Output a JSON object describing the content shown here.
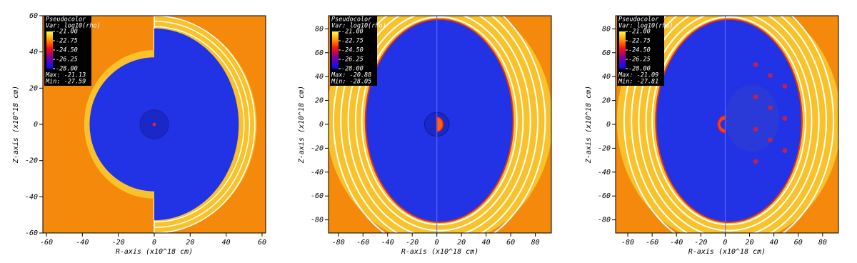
{
  "chart_data": [
    {
      "type": "image",
      "xlabel": "R-axis (x10^18 cm)",
      "ylabel": "Z-axis (x10^18 cm)",
      "xlim": [
        -62,
        62
      ],
      "xticks": [
        -60,
        -40,
        -20,
        0,
        20,
        40,
        60
      ],
      "ylim": [
        -60,
        60
      ],
      "yticks": [
        -60,
        -40,
        -20,
        0,
        20,
        40,
        60
      ],
      "legend_title": "Pseudocolor",
      "variable": "Var: log10(rho)",
      "clim": [
        -28,
        -21
      ],
      "cticks": [
        {
          "value": -21,
          "label": "-21.00"
        },
        {
          "value": -22.75,
          "label": "-22.75"
        },
        {
          "value": -24.5,
          "label": "-24.50"
        },
        {
          "value": -26.25,
          "label": "-26.25"
        },
        {
          "value": -28,
          "label": "-28.00"
        }
      ],
      "max_text": "Max: -21.13",
      "min_text": "Min: -27.59"
    },
    {
      "type": "image",
      "xlabel": "R-axis (x10^18 cm)",
      "ylabel": "Z-axis (x10^18 cm)",
      "xlim": [
        -88,
        93
      ],
      "xticks": [
        -80,
        -60,
        -40,
        -20,
        0,
        20,
        40,
        60,
        80
      ],
      "ylim": [
        -91,
        91
      ],
      "yticks": [
        -80,
        -60,
        -40,
        -20,
        0,
        20,
        40,
        60,
        80
      ],
      "legend_title": "Pseudocolor",
      "variable": "Var: log10(rho)",
      "clim": [
        -28,
        -21
      ],
      "cticks": [
        {
          "value": -21,
          "label": "-21.00"
        },
        {
          "value": -22.75,
          "label": "-22.75"
        },
        {
          "value": -24.5,
          "label": "-24.50"
        },
        {
          "value": -26.25,
          "label": "-26.25"
        },
        {
          "value": -28,
          "label": "-28.00"
        }
      ],
      "max_text": "Max: -20.88",
      "min_text": "Min: -28.05"
    },
    {
      "type": "image",
      "xlabel": "R-axis (x10^18 cm)",
      "ylabel": "Z-axis (x10^18 cm)",
      "xlim": [
        -90,
        93
      ],
      "xticks": [
        -80,
        -60,
        -40,
        -20,
        0,
        20,
        40,
        60,
        80
      ],
      "ylim": [
        -91,
        91
      ],
      "yticks": [
        -80,
        -60,
        -40,
        -20,
        0,
        20,
        40,
        60,
        80
      ],
      "legend_title": "Pseudocolor",
      "variable": "Var: log10(rho)",
      "clim": [
        -28,
        -21
      ],
      "cticks": [
        {
          "value": -21,
          "label": "-21.00"
        },
        {
          "value": -22.75,
          "label": "-22.75"
        },
        {
          "value": -24.5,
          "label": "-24.50"
        },
        {
          "value": -26.25,
          "label": "-26.25"
        },
        {
          "value": -28,
          "label": "-28.00"
        }
      ],
      "max_text": "Max: -21.09",
      "min_text": "Min: -27.81"
    }
  ]
}
